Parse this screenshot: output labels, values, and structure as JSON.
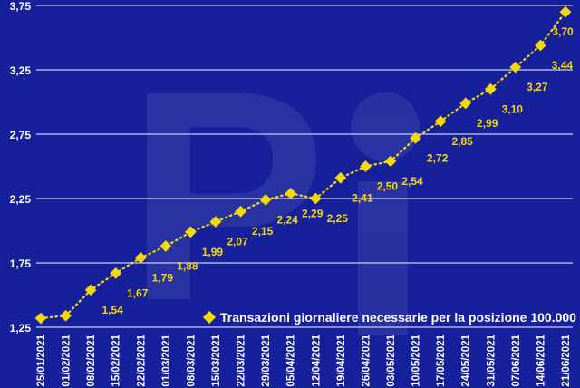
{
  "chart_data": {
    "type": "line",
    "title": "",
    "xlabel": "",
    "ylabel": "",
    "categories": [
      "25/01/2021",
      "01/02/2021",
      "08/02/2021",
      "15/02/2021",
      "22/02/2021",
      "01/03/2021",
      "08/03/2021",
      "15/03/2021",
      "22/03/2021",
      "29/03/2021",
      "05/04/2021",
      "12/04/2021",
      "19/04/2021",
      "26/04/2021",
      "03/05/2021",
      "10/05/2021",
      "17/05/2021",
      "24/05/2021",
      "31/05/2021",
      "07/06/2021",
      "14/06/2021",
      "21/06/2021"
    ],
    "series": [
      {
        "name": "Transazioni giornaliere necessarie per la posizione 100.000",
        "values": [
          1.32,
          1.34,
          1.54,
          1.67,
          1.79,
          1.88,
          1.99,
          2.07,
          2.15,
          2.24,
          2.29,
          2.25,
          2.41,
          2.5,
          2.54,
          2.72,
          2.85,
          2.99,
          3.1,
          3.27,
          3.44,
          3.7
        ],
        "data_labels": [
          "",
          "",
          "1,54",
          "1,67",
          "1,79",
          "1,88",
          "1,99",
          "2,07",
          "2,15",
          "2,24",
          "2,29",
          "2,25",
          "2,41",
          "2,50",
          "2,54",
          "2,72",
          "2,85",
          "2,99",
          "3,10",
          "3,27",
          "3,44",
          "3,70"
        ],
        "color": "#f5d80a",
        "marker": "diamond",
        "line_style": "dotted"
      }
    ],
    "ylim": [
      1.25,
      3.75
    ],
    "yticks": [
      1.25,
      1.75,
      2.25,
      2.75,
      3.25,
      3.75
    ],
    "ytick_labels": [
      "1,25",
      "1,75",
      "2,25",
      "2,75",
      "3,25",
      "3,75"
    ],
    "grid": "horizontal",
    "legend_position": "bottom-right",
    "background_color": "#15209a",
    "watermark": "Pi"
  }
}
